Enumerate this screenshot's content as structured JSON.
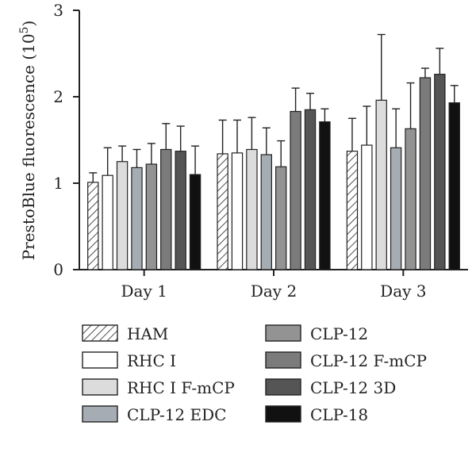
{
  "chart_data": {
    "type": "bar",
    "ylabel": "PrestoBlue fluorescence (10^5)",
    "ylabel_main": "PrestoBlue fluorescence (10",
    "ylabel_exp": "5",
    "ylabel_close": ")",
    "ylim": [
      0,
      3
    ],
    "yticks": [
      "0",
      "1",
      "2",
      "3"
    ],
    "categories": [
      "Day 1",
      "Day 2",
      "Day 3"
    ],
    "error_bars": "upper only",
    "series": [
      {
        "name": "HAM",
        "pattern": "hatch",
        "color": "#ffffff",
        "values": [
          1.01,
          1.34,
          1.37
        ],
        "errors": [
          0.11,
          0.39,
          0.38
        ]
      },
      {
        "name": "RHC I",
        "color": "#ffffff",
        "values": [
          1.09,
          1.35,
          1.44
        ],
        "errors": [
          0.32,
          0.38,
          0.45
        ]
      },
      {
        "name": "RHC I F-mCP",
        "color": "#dcdcdc",
        "values": [
          1.25,
          1.39,
          1.96
        ],
        "errors": [
          0.18,
          0.37,
          0.76
        ]
      },
      {
        "name": "CLP-12 EDC",
        "color": "#a6acb3",
        "values": [
          1.18,
          1.33,
          1.41
        ],
        "errors": [
          0.21,
          0.31,
          0.45
        ]
      },
      {
        "name": "CLP-12",
        "color": "#939393",
        "values": [
          1.22,
          1.19,
          1.63
        ],
        "errors": [
          0.24,
          0.3,
          0.53
        ]
      },
      {
        "name": "CLP-12 F-mCP",
        "color": "#7b7b7b",
        "values": [
          1.39,
          1.83,
          2.22
        ],
        "errors": [
          0.3,
          0.27,
          0.11
        ]
      },
      {
        "name": "CLP-12 3D",
        "color": "#555555",
        "values": [
          1.37,
          1.85,
          2.26
        ],
        "errors": [
          0.29,
          0.19,
          0.3
        ]
      },
      {
        "name": "CLP-18",
        "color": "#111111",
        "values": [
          1.1,
          1.71,
          1.93
        ],
        "errors": [
          0.33,
          0.15,
          0.2
        ]
      }
    ],
    "legend_placement": "bottom, two columns"
  }
}
